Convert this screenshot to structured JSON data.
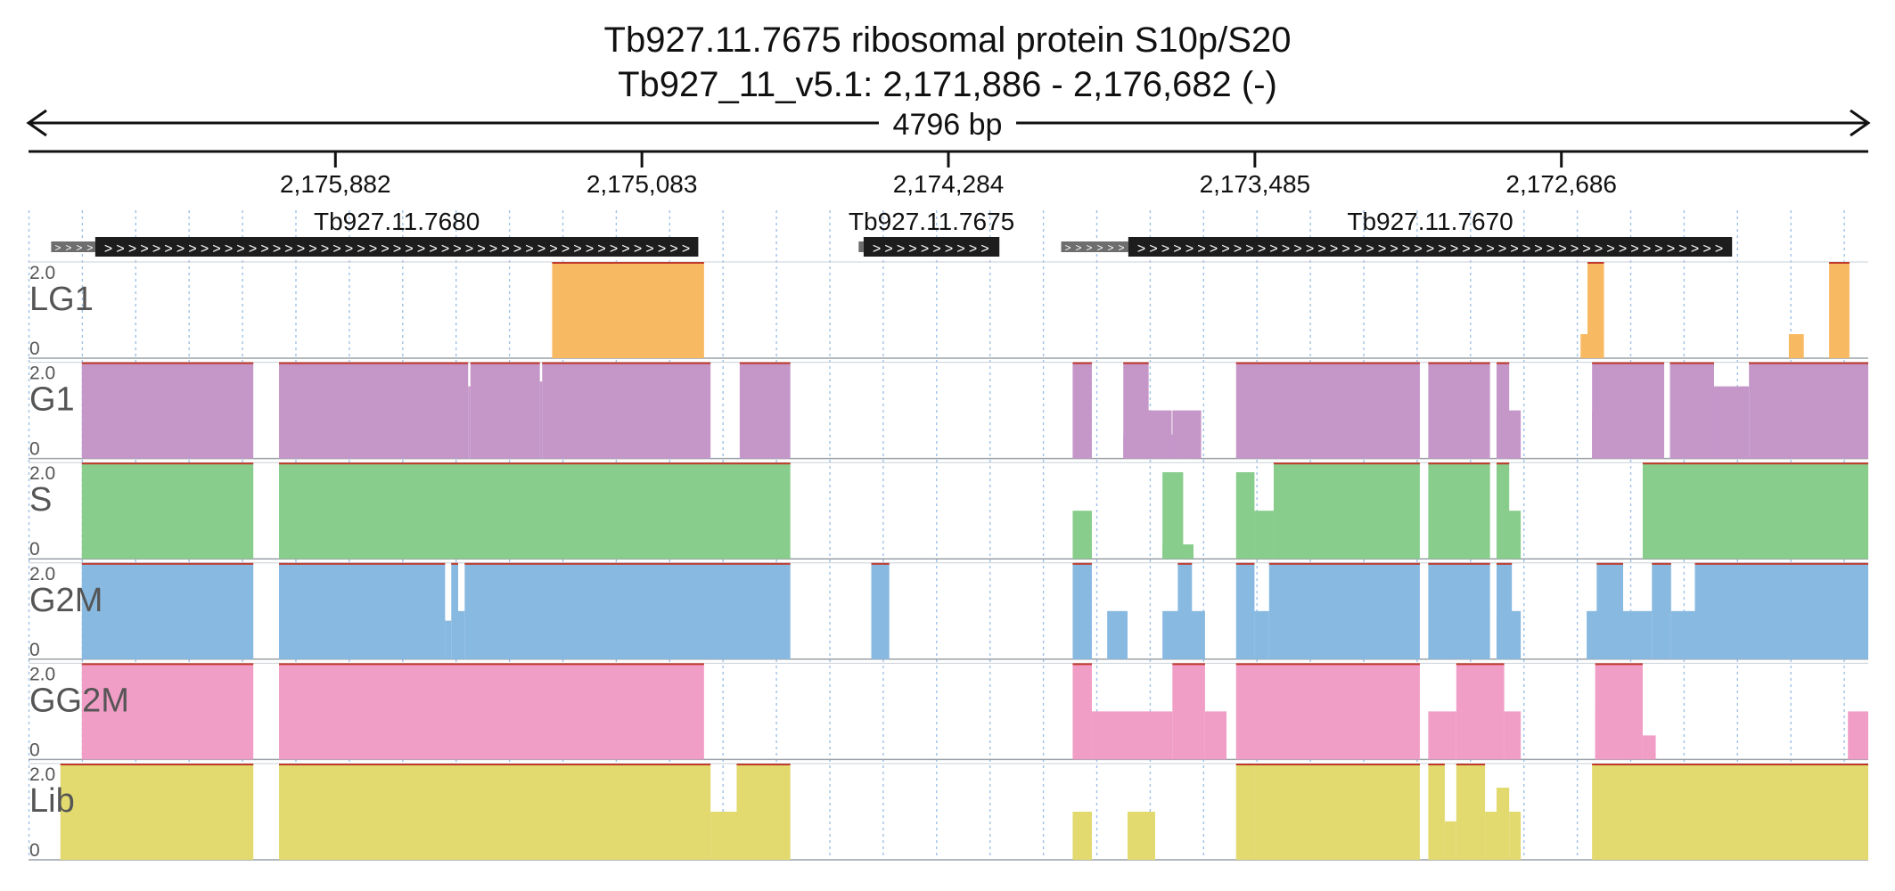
{
  "title": {
    "line1": "Tb927.11.7675  ribosomal protein S10p/S20",
    "line2": "Tb927_11_v5.1: 2,171,886 - 2,176,682 (-)"
  },
  "span_label": "4796 bp",
  "colors": {
    "LG1": "#f8b963",
    "G1": "#c597c9",
    "S": "#88cd8c",
    "G2M": "#88b9e1",
    "GG2M": "#f19ec6",
    "Lib": "#e2d96f",
    "gene": "#1d1d1d",
    "grid": "#9ec1e6",
    "cap": "#c0392b"
  },
  "chart_data": {
    "type": "area",
    "region": {
      "chrom": "Tb927_11_v5.1",
      "start": 2171886,
      "end": 2176682,
      "strand": "-"
    },
    "x_ticks": [
      {
        "value": 2175882,
        "label": "2,175,882"
      },
      {
        "value": 2175083,
        "label": "2,175,083"
      },
      {
        "value": 2174284,
        "label": "2,174,284"
      },
      {
        "value": 2173485,
        "label": "2,173,485"
      },
      {
        "value": 2172686,
        "label": "2,172,686"
      }
    ],
    "genes": [
      {
        "name": "Tb927.11.7680",
        "start": 2174936,
        "end": 2176508,
        "utr": [
          2176508,
          2176623
        ]
      },
      {
        "name": "Tb927.11.7675",
        "start": 2174151,
        "end": 2174505,
        "utr": [
          2174505,
          2174518
        ]
      },
      {
        "name": "Tb927.11.7670",
        "start": 2172241,
        "end": 2173815,
        "utr": [
          2173815,
          2173990
        ]
      }
    ],
    "tracks": [
      {
        "name": "LG1",
        "ylim": [
          0,
          2.0
        ],
        "y_ticks": [
          "2.0",
          "0"
        ],
        "segments": [
          [
            2175317,
            2174921,
            2.0
          ],
          [
            2172636,
            2172575,
            0.5
          ],
          [
            2172618,
            2172575,
            2.0
          ],
          [
            2172093,
            2172054,
            0.5
          ],
          [
            2171988,
            2171935,
            2.0
          ]
        ]
      },
      {
        "name": "G1",
        "ylim": [
          0,
          2.0
        ],
        "y_ticks": [
          "2.0",
          "0"
        ],
        "segments": [
          [
            2176543,
            2176096,
            2.0
          ],
          [
            2176029,
            2175536,
            2.0
          ],
          [
            2175536,
            2175530,
            1.5
          ],
          [
            2175530,
            2175349,
            2.0
          ],
          [
            2175349,
            2175343,
            1.6
          ],
          [
            2175343,
            2174904,
            2.0
          ],
          [
            2174828,
            2174696,
            2.0
          ],
          [
            2173960,
            2173910,
            2.0
          ],
          [
            2173828,
            2173762,
            2.0
          ],
          [
            2173828,
            2173650,
            0.5
          ],
          [
            2173774,
            2173702,
            1.0
          ],
          [
            2173700,
            2173625,
            1.0
          ],
          [
            2173534,
            2173055,
            2.0
          ],
          [
            2173033,
            2172872,
            2.0
          ],
          [
            2172855,
            2172822,
            2.0
          ],
          [
            2172855,
            2172792,
            1.0
          ],
          [
            2172606,
            2172418,
            2.0
          ],
          [
            2172606,
            2172475,
            1.0
          ],
          [
            2172403,
            2172288,
            2.0
          ],
          [
            2172288,
            2172197,
            1.5
          ],
          [
            2172197,
            2171886,
            2.0
          ]
        ]
      },
      {
        "name": "S",
        "ylim": [
          0,
          2.0
        ],
        "y_ticks": [
          "2.0",
          "0"
        ],
        "segments": [
          [
            2176543,
            2176096,
            2.0
          ],
          [
            2176029,
            2174696,
            2.0
          ],
          [
            2173960,
            2173910,
            1.0
          ],
          [
            2173726,
            2173672,
            1.8
          ],
          [
            2173726,
            2173645,
            0.3
          ],
          [
            2173534,
            2173486,
            1.8
          ],
          [
            2173486,
            2173436,
            1.0
          ],
          [
            2173436,
            2173055,
            2.0
          ],
          [
            2173033,
            2172872,
            2.0
          ],
          [
            2172855,
            2172822,
            2.0
          ],
          [
            2172855,
            2172792,
            1.0
          ],
          [
            2172474,
            2171886,
            2.0
          ]
        ]
      },
      {
        "name": "G2M",
        "ylim": [
          0,
          2.0
        ],
        "y_ticks": [
          "2.0",
          "0"
        ],
        "segments": [
          [
            2176543,
            2176096,
            2.0
          ],
          [
            2176029,
            2175596,
            2.0
          ],
          [
            2175596,
            2175580,
            0.8
          ],
          [
            2175580,
            2175562,
            2.0
          ],
          [
            2175562,
            2175545,
            1.0
          ],
          [
            2175545,
            2174696,
            2.0
          ],
          [
            2174485,
            2174438,
            2.0
          ],
          [
            2173960,
            2173910,
            2.0
          ],
          [
            2173870,
            2173817,
            1.0
          ],
          [
            2173726,
            2173672,
            1.0
          ],
          [
            2173686,
            2173649,
            2.0
          ],
          [
            2173664,
            2173615,
            1.0
          ],
          [
            2173534,
            2173486,
            2.0
          ],
          [
            2173486,
            2173448,
            1.0
          ],
          [
            2173448,
            2173055,
            2.0
          ],
          [
            2173033,
            2172872,
            2.0
          ],
          [
            2172855,
            2172792,
            1.0
          ],
          [
            2172855,
            2172815,
            2.0
          ],
          [
            2172620,
            2172570,
            1.0
          ],
          [
            2172594,
            2172525,
            2.0
          ],
          [
            2172525,
            2172450,
            1.0
          ],
          [
            2172450,
            2172400,
            2.0
          ],
          [
            2172400,
            2172338,
            1.0
          ],
          [
            2172338,
            2171886,
            2.0
          ]
        ]
      },
      {
        "name": "GG2M",
        "ylim": [
          0,
          2.0
        ],
        "y_ticks": [
          "2.0",
          "0"
        ],
        "segments": [
          [
            2176543,
            2176096,
            2.0
          ],
          [
            2176029,
            2174921,
            2.0
          ],
          [
            2173960,
            2173910,
            2.0
          ],
          [
            2173910,
            2173700,
            1.0
          ],
          [
            2173700,
            2173615,
            2.0
          ],
          [
            2173615,
            2173559,
            1.0
          ],
          [
            2173534,
            2173055,
            2.0
          ],
          [
            2173033,
            2172960,
            1.0
          ],
          [
            2172960,
            2172835,
            2.0
          ],
          [
            2172835,
            2172792,
            1.0
          ],
          [
            2172598,
            2172474,
            2.0
          ],
          [
            2172598,
            2172505,
            1.0
          ],
          [
            2172474,
            2172440,
            0.5
          ],
          [
            2171939,
            2171886,
            1.0
          ]
        ]
      },
      {
        "name": "Lib",
        "ylim": [
          0,
          2.0
        ],
        "y_ticks": [
          "2.0",
          "0"
        ],
        "segments": [
          [
            2176599,
            2176096,
            2.0
          ],
          [
            2176029,
            2174904,
            2.0
          ],
          [
            2174904,
            2174784,
            1.0
          ],
          [
            2174836,
            2174696,
            2.0
          ],
          [
            2173960,
            2173910,
            1.0
          ],
          [
            2173817,
            2173745,
            1.0
          ],
          [
            2173534,
            2173486,
            2.0
          ],
          [
            2173486,
            2173055,
            2.0
          ],
          [
            2173033,
            2172990,
            2.0
          ],
          [
            2172990,
            2172960,
            0.8
          ],
          [
            2172960,
            2172885,
            2.0
          ],
          [
            2172885,
            2172855,
            1.0
          ],
          [
            2172855,
            2172822,
            1.5
          ],
          [
            2172822,
            2172792,
            1.0
          ],
          [
            2172606,
            2171886,
            2.0
          ]
        ]
      }
    ]
  }
}
